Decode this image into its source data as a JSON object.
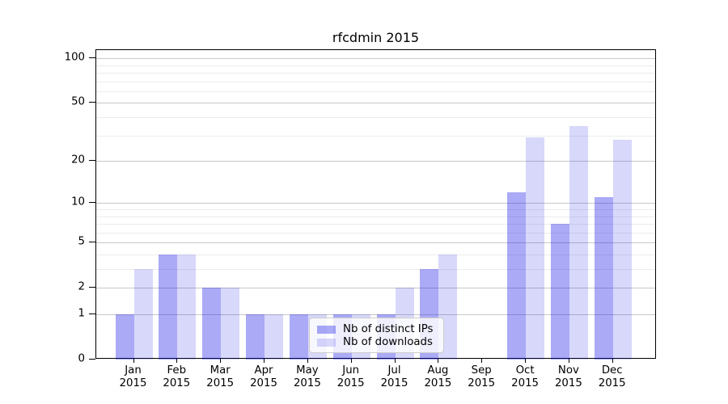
{
  "chart_data": {
    "type": "bar",
    "title": "rfcdmin 2015",
    "categories": [
      "Jan",
      "Feb",
      "Mar",
      "Apr",
      "May",
      "Jun",
      "Jul",
      "Aug",
      "Sep",
      "Oct",
      "Nov",
      "Dec"
    ],
    "category_year": "2015",
    "series": [
      {
        "name": "Nb of distinct IPs",
        "color": "rgba(10,10,230,0.345)",
        "values": [
          1,
          4,
          2,
          1,
          1,
          1,
          1,
          3,
          0,
          12,
          7,
          11
        ]
      },
      {
        "name": "Nb of downloads",
        "color": "rgba(10,10,230,0.16)",
        "values": [
          3,
          4,
          2,
          1,
          1,
          1,
          2,
          4,
          0,
          29,
          35,
          28
        ]
      }
    ],
    "xlabel": "",
    "ylabel": "",
    "yscale": "log1p",
    "ylim": [
      0,
      110
    ],
    "y_major_ticks": [
      0,
      1,
      2,
      5,
      10,
      20,
      50,
      100
    ],
    "y_minor_gridlines": [
      3,
      4,
      6,
      7,
      8,
      9,
      30,
      40,
      60,
      70,
      80,
      90
    ],
    "grid": "on",
    "legend_position": "lower center",
    "colors": {
      "grid_major": "#c8c8c8",
      "grid_minor": "#ececec",
      "spine": "#000000",
      "background": "#ffffff"
    }
  }
}
